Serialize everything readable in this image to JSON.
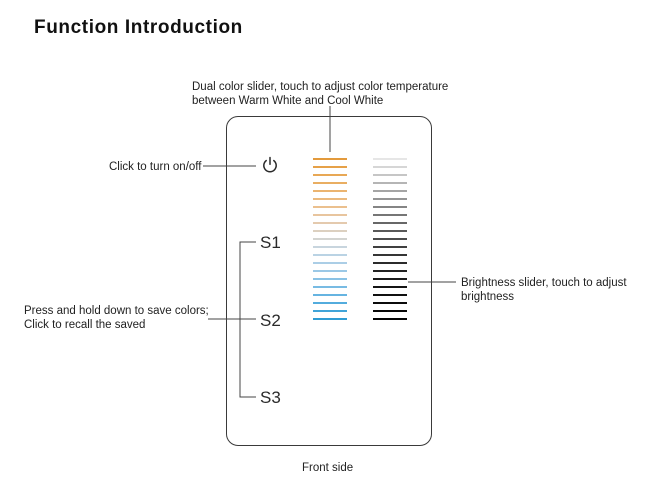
{
  "title": "Function Introduction",
  "annotations": {
    "color_slider": [
      "Dual color slider, touch to adjust color temperature",
      "between Warm White and Cool White"
    ],
    "power": "Click to turn on/off",
    "scenes": [
      "Press and hold down to save colors;",
      "Click to recall the saved"
    ],
    "brightness": [
      "Brightness slider, touch to adjust",
      "brightness"
    ]
  },
  "panel": {
    "power_icon": "power-icon",
    "scene_labels": [
      "S1",
      "S2",
      "S3"
    ]
  },
  "caption": "Front side",
  "colors": {
    "color_slider": [
      "#e39a3c",
      "#e6a148",
      "#e8a855",
      "#e9ae62",
      "#ebb470",
      "#ebba7f",
      "#ebc08e",
      "#e8c59e",
      "#e4caae",
      "#dcd0c0",
      "#d3d4d1",
      "#c8d5de",
      "#bad3e4",
      "#abcee6",
      "#9bc8e6",
      "#8ac2e5",
      "#78bbe3",
      "#66b4e1",
      "#53acdd",
      "#41a4d8",
      "#309cd3"
    ],
    "brightness_slider": [
      "#e6e6e6",
      "#d6d6d6",
      "#c6c6c6",
      "#b5b5b5",
      "#a5a5a5",
      "#959595",
      "#858585",
      "#767676",
      "#676767",
      "#595959",
      "#4c4c4c",
      "#404040",
      "#353535",
      "#2b2b2b",
      "#222222",
      "#1b1b1b",
      "#151515",
      "#101010",
      "#0b0b0b",
      "#070707",
      "#040404"
    ]
  }
}
